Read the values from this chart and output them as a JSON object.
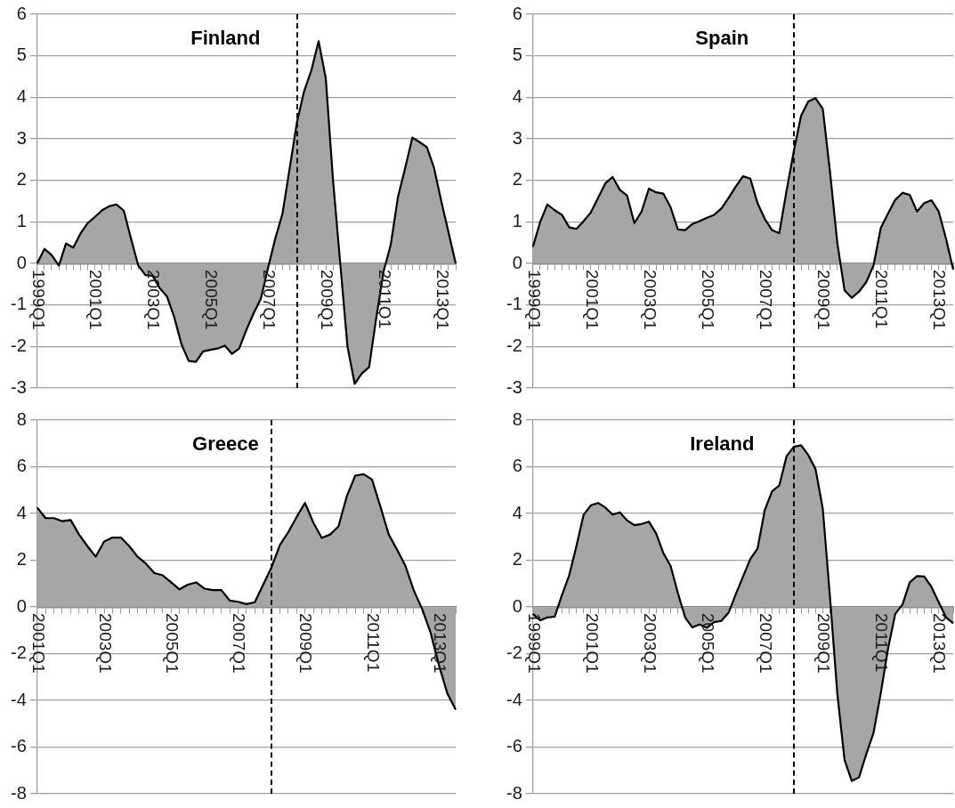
{
  "chart_data": [
    {
      "type": "area",
      "title": "Finland",
      "color": "#a6a6a6",
      "grid": "y",
      "ylim": [
        -3,
        6
      ],
      "yticks": [
        -3,
        -2,
        -1,
        0,
        1,
        2,
        3,
        4,
        5,
        6
      ],
      "categories": [
        "1999Q1",
        null,
        null,
        null,
        null,
        null,
        null,
        null,
        "2001Q1",
        null,
        null,
        null,
        null,
        null,
        null,
        null,
        "2003Q1",
        null,
        null,
        null,
        null,
        null,
        null,
        null,
        "2005Q1",
        null,
        null,
        null,
        null,
        null,
        null,
        null,
        "2007Q1",
        null,
        null,
        null,
        null,
        null,
        null,
        null,
        "2009Q1",
        null,
        null,
        null,
        null,
        null,
        null,
        null,
        "2011Q1",
        null,
        null,
        null,
        null,
        null,
        null,
        null,
        "2013Q1",
        null,
        null
      ],
      "values": [
        0,
        0.35,
        0.2,
        -0.05,
        0.48,
        0.38,
        0.72,
        0.97,
        1.12,
        1.28,
        1.38,
        1.42,
        1.27,
        0.6,
        -0.05,
        -0.28,
        -0.3,
        -0.6,
        -0.8,
        -1.3,
        -1.95,
        -2.35,
        -2.37,
        -2.12,
        -2.08,
        -2.05,
        -1.98,
        -2.18,
        -2.05,
        -1.6,
        -1.2,
        -0.85,
        -0.1,
        0.6,
        1.2,
        2.3,
        3.4,
        4.15,
        4.65,
        5.35,
        4.45,
        2.0,
        0.0,
        -2.0,
        -2.9,
        -2.65,
        -2.5,
        -1.3,
        -0.2,
        0.45,
        1.6,
        2.3,
        3.03,
        2.92,
        2.8,
        2.3,
        1.5,
        0.75,
        0
      ]
    },
    {
      "type": "area",
      "title": "Spain",
      "color": "#a6a6a6",
      "grid": "y",
      "ylim": [
        -3,
        6
      ],
      "yticks": [
        -3,
        -2,
        -1,
        0,
        1,
        2,
        3,
        4,
        5,
        6
      ],
      "categories": [
        "1999Q1",
        null,
        null,
        null,
        null,
        null,
        null,
        null,
        "2001Q1",
        null,
        null,
        null,
        null,
        null,
        null,
        null,
        "2003Q1",
        null,
        null,
        null,
        null,
        null,
        null,
        null,
        "2005Q1",
        null,
        null,
        null,
        null,
        null,
        null,
        null,
        "2007Q1",
        null,
        null,
        null,
        null,
        null,
        null,
        null,
        "2009Q1",
        null,
        null,
        null,
        null,
        null,
        null,
        null,
        "2011Q1",
        null,
        null,
        null,
        null,
        null,
        null,
        null,
        "2013Q1",
        null,
        null
      ],
      "values": [
        0.4,
        1.0,
        1.42,
        1.28,
        1.17,
        0.87,
        0.83,
        1.02,
        1.23,
        1.58,
        1.93,
        2.08,
        1.77,
        1.63,
        0.97,
        1.25,
        1.8,
        1.71,
        1.68,
        1.35,
        0.82,
        0.8,
        0.95,
        1.02,
        1.1,
        1.17,
        1.32,
        1.58,
        1.85,
        2.1,
        2.04,
        1.45,
        1.07,
        0.8,
        0.73,
        1.75,
        2.7,
        3.55,
        3.9,
        3.98,
        3.72,
        2.2,
        0.5,
        -0.65,
        -0.83,
        -0.68,
        -0.45,
        -0.05,
        0.85,
        1.2,
        1.53,
        1.7,
        1.65,
        1.25,
        1.45,
        1.52,
        1.25,
        0.6,
        -0.15
      ]
    },
    {
      "type": "area",
      "title": "Greece",
      "color": "#a6a6a6",
      "grid": "y",
      "ylim": [
        -8,
        8
      ],
      "yticks": [
        -8,
        -6,
        -4,
        -2,
        0,
        2,
        4,
        6,
        8
      ],
      "categories": [
        "2001Q1",
        null,
        null,
        null,
        null,
        null,
        null,
        null,
        "2003Q1",
        null,
        null,
        null,
        null,
        null,
        null,
        null,
        "2005Q1",
        null,
        null,
        null,
        null,
        null,
        null,
        null,
        "2007Q1",
        null,
        null,
        null,
        null,
        null,
        null,
        null,
        "2009Q1",
        null,
        null,
        null,
        null,
        null,
        null,
        null,
        "2011Q1",
        null,
        null,
        null,
        null,
        null,
        null,
        null,
        "2013Q1",
        null,
        null
      ],
      "values": [
        4.25,
        3.8,
        3.8,
        3.67,
        3.72,
        3.1,
        2.6,
        2.15,
        2.8,
        2.97,
        2.97,
        2.6,
        2.15,
        1.85,
        1.45,
        1.35,
        1.05,
        0.75,
        0.95,
        1.05,
        0.78,
        0.72,
        0.72,
        0.27,
        0.22,
        0.12,
        0.2,
        0.95,
        1.7,
        2.65,
        3.2,
        3.85,
        4.45,
        3.6,
        2.95,
        3.1,
        3.45,
        4.75,
        5.62,
        5.68,
        5.45,
        4.3,
        3.1,
        2.45,
        1.75,
        0.7,
        -0.1,
        -1.1,
        -2.5,
        -3.7,
        -4.4
      ]
    },
    {
      "type": "area",
      "title": "Ireland",
      "color": "#a6a6a6",
      "grid": "y",
      "ylim": [
        -8,
        8
      ],
      "yticks": [
        -8,
        -6,
        -4,
        -2,
        0,
        2,
        4,
        6,
        8
      ],
      "categories": [
        "1999Q1",
        null,
        null,
        null,
        null,
        null,
        null,
        null,
        "2001Q1",
        null,
        null,
        null,
        null,
        null,
        null,
        null,
        "2003Q1",
        null,
        null,
        null,
        null,
        null,
        null,
        null,
        "2005Q1",
        null,
        null,
        null,
        null,
        null,
        null,
        null,
        "2007Q1",
        null,
        null,
        null,
        null,
        null,
        null,
        null,
        "2009Q1",
        null,
        null,
        null,
        null,
        null,
        null,
        null,
        "2011Q1",
        null,
        null,
        null,
        null,
        null,
        null,
        null,
        "2013Q1",
        null,
        null
      ],
      "values": [
        -0.3,
        -0.58,
        -0.45,
        -0.42,
        0.5,
        1.35,
        2.6,
        3.95,
        4.35,
        4.45,
        4.25,
        3.95,
        4.05,
        3.7,
        3.5,
        3.55,
        3.65,
        3.15,
        2.3,
        1.75,
        0.6,
        -0.45,
        -0.88,
        -0.75,
        -0.9,
        -0.65,
        -0.6,
        -0.25,
        0.55,
        1.3,
        2.05,
        2.5,
        4.15,
        4.95,
        5.2,
        6.45,
        6.85,
        6.92,
        6.5,
        5.9,
        4.2,
        0.4,
        -3.7,
        -6.55,
        -7.45,
        -7.3,
        -6.3,
        -5.4,
        -3.7,
        -1.8,
        -0.3,
        0.1,
        1.05,
        1.32,
        1.3,
        0.85,
        0.2,
        -0.45,
        -0.7
      ]
    }
  ]
}
